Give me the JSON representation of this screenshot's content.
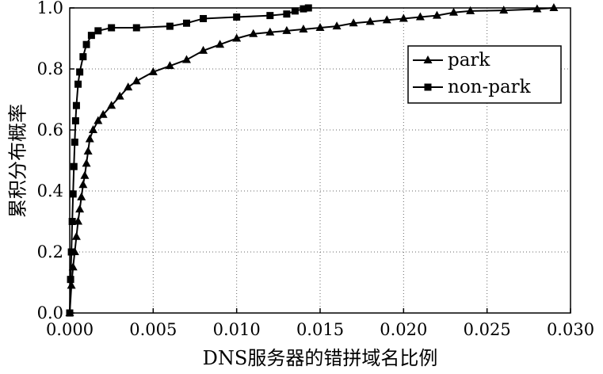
{
  "chart_data": {
    "type": "line",
    "x_label": "DNS服务器的错拼域名比例",
    "y_label": "累积分布概率",
    "xlim": [
      0,
      0.03
    ],
    "ylim": [
      0,
      1.0
    ],
    "xticks": [
      {
        "value": 0,
        "label": "0.000"
      },
      {
        "value": 0.005,
        "label": "0.005"
      },
      {
        "value": 0.01,
        "label": "0.010"
      },
      {
        "value": 0.015,
        "label": "0.015"
      },
      {
        "value": 0.02,
        "label": "0.020"
      },
      {
        "value": 0.025,
        "label": "0.025"
      },
      {
        "value": 0.03,
        "label": "0.030"
      }
    ],
    "yticks": [
      {
        "value": 0,
        "label": "0.0"
      },
      0.2,
      0.4,
      0.6,
      0.8,
      {
        "value": 1.0,
        "label": "1.0"
      }
    ],
    "grid": true,
    "legend": "upper right",
    "series": [
      {
        "name": "park",
        "color": "#000000",
        "marker": "triangle",
        "x": [
          0,
          0.0001,
          0.0002,
          0.0003,
          0.0004,
          0.0005,
          0.0006,
          0.0007,
          0.0008,
          0.0009,
          0.001,
          0.0011,
          0.0012,
          0.0014,
          0.0017,
          0.002,
          0.0025,
          0.003,
          0.0035,
          0.004,
          0.005,
          0.006,
          0.007,
          0.008,
          0.009,
          0.01,
          0.011,
          0.012,
          0.013,
          0.014,
          0.015,
          0.016,
          0.017,
          0.018,
          0.019,
          0.02,
          0.021,
          0.022,
          0.023,
          0.024,
          0.026,
          0.028,
          0.029
        ],
        "values": [
          0,
          0.09,
          0.15,
          0.2,
          0.25,
          0.3,
          0.34,
          0.38,
          0.42,
          0.45,
          0.49,
          0.53,
          0.57,
          0.6,
          0.63,
          0.65,
          0.68,
          0.71,
          0.74,
          0.76,
          0.79,
          0.81,
          0.83,
          0.86,
          0.88,
          0.9,
          0.915,
          0.92,
          0.925,
          0.93,
          0.935,
          0.94,
          0.95,
          0.955,
          0.96,
          0.965,
          0.97,
          0.975,
          0.985,
          0.99,
          0.992,
          0.996,
          1.0
        ]
      },
      {
        "name": "non-park",
        "color": "#000000",
        "marker": "square",
        "x": [
          0,
          5e-05,
          0.0001,
          0.00015,
          0.0002,
          0.00025,
          0.0003,
          0.00035,
          0.0004,
          0.0005,
          0.0006,
          0.0008,
          0.001,
          0.0013,
          0.0017,
          0.0025,
          0.004,
          0.006,
          0.007,
          0.008,
          0.01,
          0.012,
          0.013,
          0.0135,
          0.014,
          0.0143
        ],
        "values": [
          0,
          0.11,
          0.2,
          0.3,
          0.39,
          0.48,
          0.56,
          0.63,
          0.68,
          0.75,
          0.79,
          0.84,
          0.88,
          0.91,
          0.925,
          0.935,
          0.935,
          0.94,
          0.95,
          0.965,
          0.97,
          0.975,
          0.98,
          0.99,
          0.997,
          1.0
        ]
      }
    ]
  }
}
